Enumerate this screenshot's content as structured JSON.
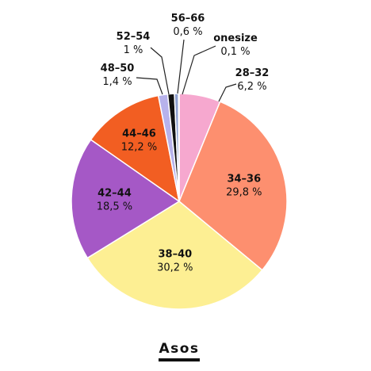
{
  "chart_data": {
    "type": "pie",
    "title": "Asos",
    "slices": [
      {
        "label": "28–32",
        "value": 6.2,
        "display": "6,2 %",
        "color": "#f6a8cf"
      },
      {
        "label": "34–36",
        "value": 29.8,
        "display": "29,8 %",
        "color": "#fd8f6f"
      },
      {
        "label": "38–40",
        "value": 30.2,
        "display": "30,2 %",
        "color": "#fdef93"
      },
      {
        "label": "42–44",
        "value": 18.5,
        "display": "18,5 %",
        "color": "#a558c6"
      },
      {
        "label": "44–46",
        "value": 12.2,
        "display": "12,2 %",
        "color": "#f25e22"
      },
      {
        "label": "48–50",
        "value": 1.4,
        "display": "1,4 %",
        "color": "#b7b2eb"
      },
      {
        "label": "52–54",
        "value": 1.0,
        "display": "1 %",
        "color": "#111111"
      },
      {
        "label": "56–66",
        "value": 0.6,
        "display": "0,6 %",
        "color": "#8fa1d0"
      },
      {
        "label": "onesize",
        "value": 0.1,
        "display": "0,1 %",
        "color": "#4aa58a"
      }
    ]
  }
}
